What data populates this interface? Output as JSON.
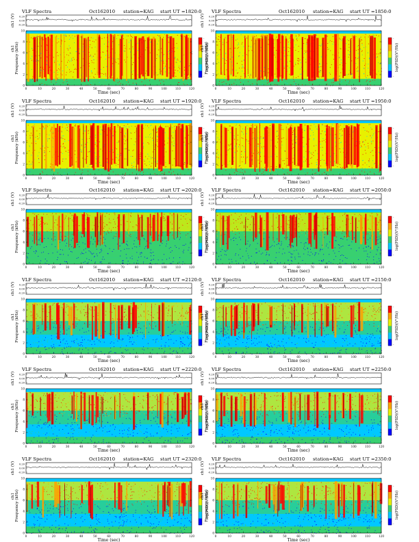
{
  "chart_data": [
    {
      "type": "heatmap",
      "title": "VLF Spectra",
      "date": "Oct162010",
      "station": "station=KAG",
      "start": "start  UT  =1820:0",
      "trace_ylabel": "ch1 (V)",
      "trace_ticks": [
        "0.20",
        "0.00",
        "-0.20"
      ],
      "ylabel_ch": "ch1",
      "ylabel": "Frequency  (kHz)",
      "yticks": [
        "0",
        "2",
        "4",
        "6",
        "8",
        "10"
      ],
      "ylim": [
        0,
        10
      ],
      "xlabel": "Time  (sec)",
      "xticks": [
        "0",
        "10",
        "20",
        "30",
        "40",
        "50",
        "60",
        "70",
        "80",
        "90",
        "100",
        "110",
        "120"
      ],
      "xlim": [
        0,
        120
      ],
      "colorbar_label": "log(PSD)(V²/Hz)",
      "colorbar_ticks": [
        "-",
        "-"
      ],
      "colormap": [
        "#0000ff",
        "#00c8ff",
        "#38d070",
        "#e8f000",
        "#ffa000",
        "#ff0000"
      ],
      "activity": "high"
    },
    {
      "type": "heatmap",
      "title": "VLF Spectra",
      "date": "Oct162010",
      "station": "station=KAG",
      "start": "start  UT  =1850:0",
      "trace_ylabel": "ch1 (V)",
      "trace_ticks": [
        "0.20",
        "0.00",
        "-0.20"
      ],
      "ylabel_ch": "ch1",
      "ylabel": "Frequency  (kHz)",
      "yticks": [
        "0",
        "2",
        "4",
        "6",
        "8",
        "10"
      ],
      "ylim": [
        0,
        10
      ],
      "xlabel": "Time  (sec)",
      "xticks": [
        "0",
        "10",
        "20",
        "30",
        "40",
        "50",
        "60",
        "70",
        "80",
        "90",
        "100",
        "110",
        "120"
      ],
      "xlim": [
        0,
        120
      ],
      "colorbar_label": "log(PSD)(V²/Hz)",
      "colorbar_ticks": [
        "-",
        "-"
      ],
      "colormap": [
        "#0000ff",
        "#00c8ff",
        "#38d070",
        "#e8f000",
        "#ffa000",
        "#ff0000"
      ],
      "activity": "high"
    },
    {
      "type": "heatmap",
      "title": "VLF Spectra",
      "date": "Oct162010",
      "station": "station=KAG",
      "start": "start  UT  =1920:0",
      "trace_ylabel": "ch1 (V)",
      "trace_ticks": [
        "0.20",
        "0.00",
        "-0.20"
      ],
      "ylabel_ch": "ch1",
      "ylabel": "Frequency  (kHz)",
      "yticks": [
        "0",
        "2",
        "4",
        "6",
        "8",
        "10"
      ],
      "ylim": [
        0,
        10
      ],
      "xlabel": "Time  (sec)",
      "xticks": [
        "0",
        "10",
        "20",
        "30",
        "40",
        "50",
        "60",
        "70",
        "80",
        "90",
        "100",
        "110",
        "120"
      ],
      "xlim": [
        0,
        120
      ],
      "colorbar_label": "log(PSD)(V²/Hz)",
      "colorbar_ticks": [
        "-",
        "-"
      ],
      "colormap": [
        "#0000ff",
        "#00c8ff",
        "#38d070",
        "#e8f000",
        "#ffa000",
        "#ff0000"
      ],
      "activity": "high"
    },
    {
      "type": "heatmap",
      "title": "VLF Spectra",
      "date": "Oct162010",
      "station": "station=KAG",
      "start": "start  UT  =1950:0",
      "trace_ylabel": "ch1 (V)",
      "trace_ticks": [
        "0.20",
        "0.00",
        "-0.20"
      ],
      "ylabel_ch": "ch1",
      "ylabel": "Frequency  (kHz)",
      "yticks": [
        "0",
        "2",
        "4",
        "6",
        "8",
        "10"
      ],
      "ylim": [
        0,
        10
      ],
      "xlabel": "Time  (sec)",
      "xticks": [
        "0",
        "10",
        "20",
        "30",
        "40",
        "50",
        "60",
        "70",
        "80",
        "90",
        "100",
        "110",
        "120"
      ],
      "xlim": [
        0,
        120
      ],
      "colorbar_label": "log(PSD)(V²/Hz)",
      "colorbar_ticks": [
        "-",
        "-"
      ],
      "colormap": [
        "#0000ff",
        "#00c8ff",
        "#38d070",
        "#e8f000",
        "#ffa000",
        "#ff0000"
      ],
      "activity": "high"
    },
    {
      "type": "heatmap",
      "title": "VLF Spectra",
      "date": "Oct162010",
      "station": "station=KAG",
      "start": "start  UT  =2020:0",
      "trace_ylabel": "ch1 (V)",
      "trace_ticks": [
        "0.20",
        "0.00",
        "-0.20"
      ],
      "ylabel_ch": "ch1",
      "ylabel": "Frequency  (kHz)",
      "yticks": [
        "0",
        "2",
        "4",
        "6",
        "8",
        "10"
      ],
      "ylim": [
        0,
        10
      ],
      "xlabel": "Time  (sec)",
      "xticks": [
        "0",
        "10",
        "20",
        "30",
        "40",
        "50",
        "60",
        "70",
        "80",
        "90",
        "100",
        "110",
        "120"
      ],
      "xlim": [
        0,
        120
      ],
      "colorbar_label": "log(PSD)(V²/Hz)",
      "colorbar_ticks": [
        "-",
        "-"
      ],
      "colormap": [
        "#0000ff",
        "#00c8ff",
        "#38d070",
        "#e8f000",
        "#ffa000",
        "#ff0000"
      ],
      "activity": "medium"
    },
    {
      "type": "heatmap",
      "title": "VLF Spectra",
      "date": "Oct162010",
      "station": "station=KAG",
      "start": "start  UT  =2050:0",
      "trace_ylabel": "ch1 (V)",
      "trace_ticks": [
        "0.20",
        "0.00",
        "-0.20"
      ],
      "ylabel_ch": "ch1",
      "ylabel": "Frequency  (kHz)",
      "yticks": [
        "0",
        "2",
        "4",
        "6",
        "8",
        "10"
      ],
      "ylim": [
        0,
        10
      ],
      "xlabel": "Time  (sec)",
      "xticks": [
        "0",
        "10",
        "20",
        "30",
        "40",
        "50",
        "60",
        "70",
        "80",
        "90",
        "100",
        "110",
        "120"
      ],
      "xlim": [
        0,
        120
      ],
      "colorbar_label": "log(PSD)(V²/Hz)",
      "colorbar_ticks": [
        "-",
        "-"
      ],
      "colormap": [
        "#0000ff",
        "#00c8ff",
        "#38d070",
        "#e8f000",
        "#ffa000",
        "#ff0000"
      ],
      "activity": "medium"
    },
    {
      "type": "heatmap",
      "title": "VLF Spectra",
      "date": "Oct162010",
      "station": "station=KAG",
      "start": "start  UT  =2120:0",
      "trace_ylabel": "ch1 (V)",
      "trace_ticks": [
        "0.20",
        "0.00",
        "-0.20"
      ],
      "ylabel_ch": "ch1",
      "ylabel": "Frequency  (kHz)",
      "yticks": [
        "0",
        "2",
        "4",
        "6",
        "8",
        "10"
      ],
      "ylim": [
        0,
        10
      ],
      "xlabel": "Time  (sec)",
      "xticks": [
        "0",
        "10",
        "20",
        "30",
        "40",
        "50",
        "60",
        "70",
        "80",
        "90",
        "100",
        "110",
        "120"
      ],
      "xlim": [
        0,
        120
      ],
      "colorbar_label": "log(PSD)(V²/Hz)",
      "colorbar_ticks": [
        "-",
        "-"
      ],
      "colormap": [
        "#0000ff",
        "#00c8ff",
        "#38d070",
        "#e8f000",
        "#ffa000",
        "#ff0000"
      ],
      "activity": "low"
    },
    {
      "type": "heatmap",
      "title": "VLF Spectra",
      "date": "Oct162010",
      "station": "station=KAG",
      "start": "start  UT  =2150:0",
      "trace_ylabel": "ch1 (V)",
      "trace_ticks": [
        "0.20",
        "0.00",
        "-0.20"
      ],
      "ylabel_ch": "ch1",
      "ylabel": "Frequency  (kHz)",
      "yticks": [
        "0",
        "2",
        "4",
        "6",
        "8",
        "10"
      ],
      "ylim": [
        0,
        10
      ],
      "xlabel": "Time  (sec)",
      "xticks": [
        "0",
        "10",
        "20",
        "30",
        "40",
        "50",
        "60",
        "70",
        "80",
        "90",
        "100",
        "110",
        "120"
      ],
      "xlim": [
        0,
        120
      ],
      "colorbar_label": "log(PSD)(V²/Hz)",
      "colorbar_ticks": [
        "-",
        "-"
      ],
      "colormap": [
        "#0000ff",
        "#00c8ff",
        "#38d070",
        "#e8f000",
        "#ffa000",
        "#ff0000"
      ],
      "activity": "low"
    },
    {
      "type": "heatmap",
      "title": "VLF Spectra",
      "date": "Oct162010",
      "station": "station=KAG",
      "start": "start  UT  =2220:0",
      "trace_ylabel": "ch1 (V)",
      "trace_ticks": [
        "0.20",
        "0.00",
        "-0.20"
      ],
      "ylabel_ch": "ch1",
      "ylabel": "Frequency  (kHz)",
      "yticks": [
        "0",
        "2",
        "4",
        "6",
        "8",
        "10"
      ],
      "ylim": [
        0,
        10
      ],
      "xlabel": "Time  (sec)",
      "xticks": [
        "0",
        "10",
        "20",
        "30",
        "40",
        "50",
        "60",
        "70",
        "80",
        "90",
        "100",
        "110",
        "120"
      ],
      "xlim": [
        0,
        120
      ],
      "colorbar_label": "log(PSD)(V²/Hz)",
      "colorbar_ticks": [
        "-",
        "-"
      ],
      "colormap": [
        "#0000ff",
        "#00c8ff",
        "#38d070",
        "#e8f000",
        "#ffa000",
        "#ff0000"
      ],
      "activity": "low"
    },
    {
      "type": "heatmap",
      "title": "VLF Spectra",
      "date": "Oct162010",
      "station": "station=KAG",
      "start": "start  UT  =2250:0",
      "trace_ylabel": "ch1 (V)",
      "trace_ticks": [
        "0.20",
        "0.00",
        "-0.20"
      ],
      "ylabel_ch": "ch1",
      "ylabel": "Frequency  (kHz)",
      "yticks": [
        "0",
        "2",
        "4",
        "6",
        "8",
        "10"
      ],
      "ylim": [
        0,
        10
      ],
      "xlabel": "Time  (sec)",
      "xticks": [
        "0",
        "10",
        "20",
        "30",
        "40",
        "50",
        "60",
        "70",
        "80",
        "90",
        "100",
        "110",
        "120"
      ],
      "xlim": [
        0,
        120
      ],
      "colorbar_label": "log(PSD)(V²/Hz)",
      "colorbar_ticks": [
        "-",
        "-"
      ],
      "colormap": [
        "#0000ff",
        "#00c8ff",
        "#38d070",
        "#e8f000",
        "#ffa000",
        "#ff0000"
      ],
      "activity": "low"
    },
    {
      "type": "heatmap",
      "title": "VLF Spectra",
      "date": "Oct162010",
      "station": "station=KAG",
      "start": "start  UT  =2320:0",
      "trace_ylabel": "ch1 (V)",
      "trace_ticks": [
        "0.20",
        "0.00",
        "-0.20"
      ],
      "ylabel_ch": "ch1",
      "ylabel": "Frequency  (kHz)",
      "yticks": [
        "0",
        "2",
        "4",
        "6",
        "8",
        "10"
      ],
      "ylim": [
        0,
        10
      ],
      "xlabel": "Time  (sec)",
      "xticks": [
        "0",
        "10",
        "20",
        "30",
        "40",
        "50",
        "60",
        "70",
        "80",
        "90",
        "100",
        "110",
        "120"
      ],
      "xlim": [
        0,
        120
      ],
      "colorbar_label": "log(PSD)(V²/Hz)",
      "colorbar_ticks": [
        "-",
        "-"
      ],
      "colormap": [
        "#0000ff",
        "#00c8ff",
        "#38d070",
        "#e8f000",
        "#ffa000",
        "#ff0000"
      ],
      "activity": "low"
    },
    {
      "type": "heatmap",
      "title": "VLF Spectra",
      "date": "Oct162010",
      "station": "station=KAG",
      "start": "start  UT  =2350:0",
      "trace_ylabel": "ch1 (V)",
      "trace_ticks": [
        "0.20",
        "0.00",
        "-0.20"
      ],
      "ylabel_ch": "ch1",
      "ylabel": "Frequency  (kHz)",
      "yticks": [
        "0",
        "2",
        "4",
        "6",
        "8",
        "10"
      ],
      "ylim": [
        0,
        10
      ],
      "xlabel": "Time  (sec)",
      "xticks": [
        "0",
        "10",
        "20",
        "30",
        "40",
        "50",
        "60",
        "70",
        "80",
        "90",
        "100",
        "110",
        "120"
      ],
      "xlim": [
        0,
        120
      ],
      "colorbar_label": "log(PSD)(V²/Hz)",
      "colorbar_ticks": [
        "-",
        "-"
      ],
      "colormap": [
        "#0000ff",
        "#00c8ff",
        "#38d070",
        "#e8f000",
        "#ffa000",
        "#ff0000"
      ],
      "activity": "low"
    }
  ]
}
